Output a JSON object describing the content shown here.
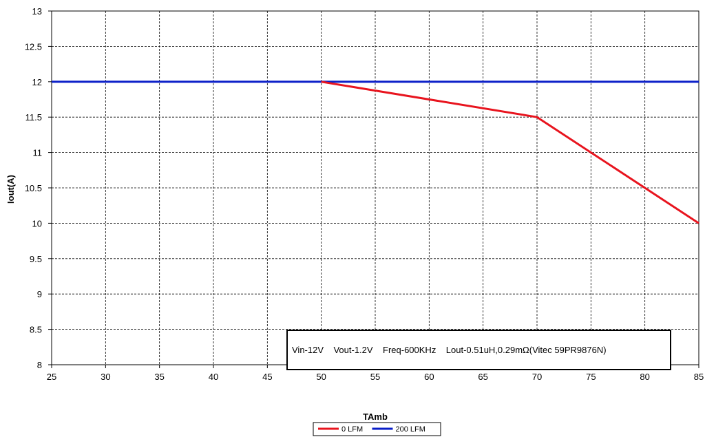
{
  "chart_data": {
    "type": "line",
    "xlabel": "TAmb",
    "ylabel": "Iout(A)",
    "xlim": [
      25,
      85
    ],
    "ylim": [
      8,
      13
    ],
    "xticks": [
      25,
      30,
      35,
      40,
      45,
      50,
      55,
      60,
      65,
      70,
      75,
      80,
      85
    ],
    "yticks": [
      8,
      8.5,
      9,
      9.5,
      10,
      10.5,
      11,
      11.5,
      12,
      12.5,
      13
    ],
    "grid": true,
    "legend_position": "bottom",
    "annotation": "Vin-12V    Vout-1.2V    Freq-600KHz    Lout-0.51uH,0.29mΩ(Vitec 59PR9876N)",
    "series": [
      {
        "name": "0 LFM",
        "color": "#e8141e",
        "x": [
          50,
          70,
          85
        ],
        "y": [
          12,
          11.5,
          10
        ]
      },
      {
        "name": "200 LFM",
        "color": "#0a1ec8",
        "x": [
          25,
          85
        ],
        "y": [
          12,
          12
        ]
      }
    ]
  }
}
